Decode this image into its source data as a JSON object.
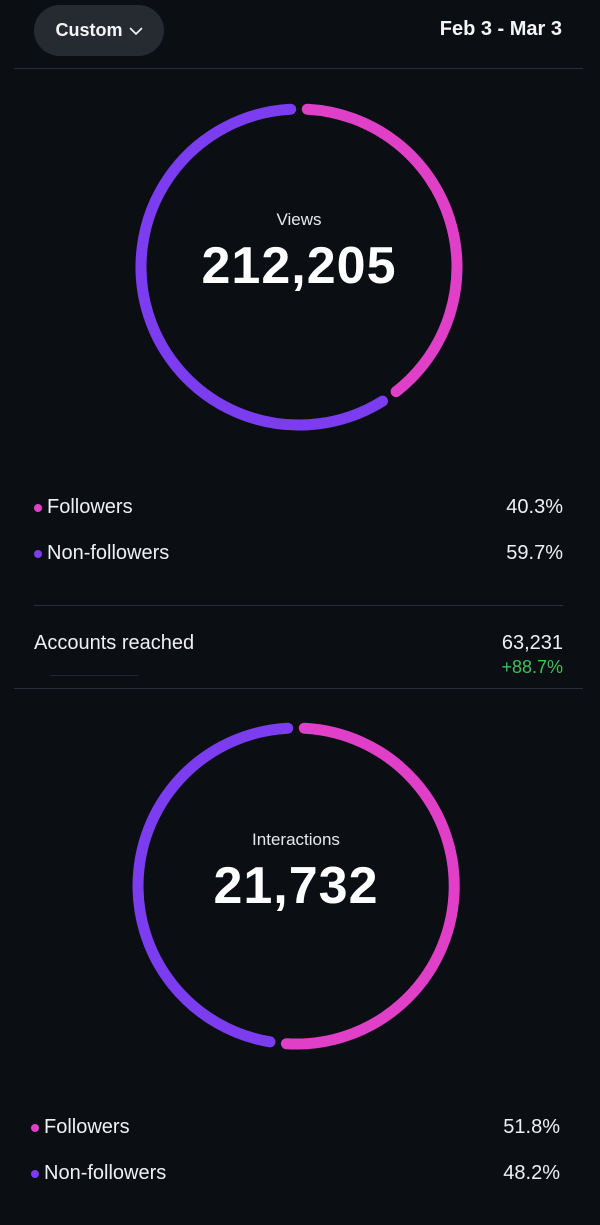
{
  "header": {
    "range_button_label": "Custom",
    "date_range": "Feb 3 - Mar 3"
  },
  "colors": {
    "followers": "#e040c8",
    "non_followers": "#7c3cf0",
    "positive_change": "#3fbf5a",
    "background": "#0b0f14"
  },
  "views": {
    "label": "Views",
    "value": "212,205",
    "legend": [
      {
        "label": "Followers",
        "value": "40.3%"
      },
      {
        "label": "Non-followers",
        "value": "59.7%"
      }
    ]
  },
  "accounts_reached": {
    "label": "Accounts reached",
    "value": "63,231",
    "change": "+88.7%"
  },
  "interactions": {
    "label": "Interactions",
    "value": "21,732",
    "legend": [
      {
        "label": "Followers",
        "value": "51.8%"
      },
      {
        "label": "Non-followers",
        "value": "48.2%"
      }
    ]
  },
  "chart_data": [
    {
      "type": "pie",
      "series": [
        {
          "name": "Followers",
          "values": [
            40.3
          ]
        },
        {
          "name": "Non-followers",
          "values": [
            59.7
          ]
        }
      ],
      "title": "Views"
    },
    {
      "type": "pie",
      "series": [
        {
          "name": "Followers",
          "values": [
            51.8
          ]
        },
        {
          "name": "Non-followers",
          "values": [
            48.2
          ]
        }
      ],
      "title": "Interactions"
    }
  ]
}
